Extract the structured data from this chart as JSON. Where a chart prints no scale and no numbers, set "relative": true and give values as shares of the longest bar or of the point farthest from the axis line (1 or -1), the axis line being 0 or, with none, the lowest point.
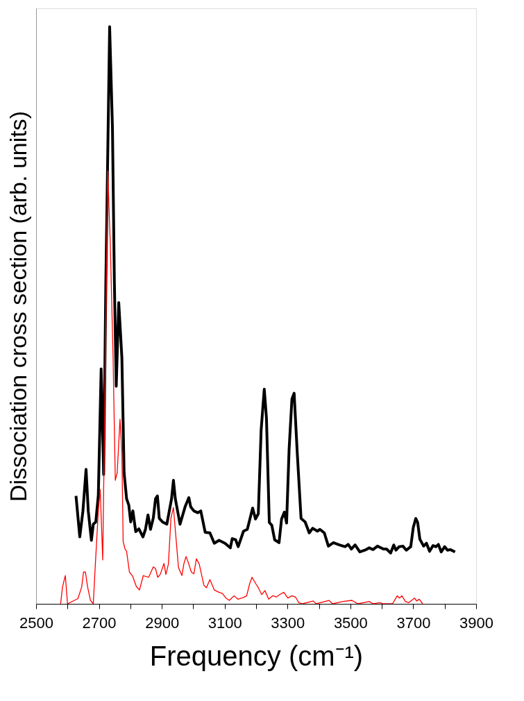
{
  "chart_data": {
    "type": "line",
    "xlabel": "Frequency (cm⁻¹)",
    "ylabel": "Dissociation cross section (arb. units)",
    "relative": true,
    "xlim": [
      2500,
      3900
    ],
    "xticks": [
      2500,
      {
        "value": 2600,
        "label": null
      },
      2700,
      {
        "value": 2800,
        "label": null
      },
      2900,
      {
        "value": 3000,
        "label": null
      },
      3100,
      {
        "value": 3200,
        "label": null
      },
      3300,
      {
        "value": 3400,
        "label": null
      },
      3500,
      {
        "value": 3600,
        "label": null
      },
      3700,
      {
        "value": 3800,
        "label": null
      },
      3900
    ],
    "grid": false,
    "marker": "none",
    "line_style": "solid",
    "series": [
      {
        "color": "#000000",
        "x": [
          2627,
          2639,
          2649,
          2659,
          2666,
          2676,
          2682,
          2690,
          2698,
          2707,
          2715,
          2722,
          2734,
          2743,
          2749,
          2755,
          2763,
          2773,
          2780,
          2788,
          2795,
          2801,
          2808,
          2817,
          2827,
          2840,
          2848,
          2856,
          2864,
          2873,
          2880,
          2886,
          2892,
          2902,
          2916,
          2931,
          2937,
          2943,
          2958,
          2974,
          2986,
          2992,
          3002,
          3014,
          3024,
          3038,
          3053,
          3067,
          3082,
          3101,
          3118,
          3124,
          3135,
          3143,
          3160,
          3172,
          3189,
          3198,
          3207,
          3216,
          3226,
          3233,
          3242,
          3250,
          3259,
          3273,
          3281,
          3290,
          3297,
          3305,
          3314,
          3321,
          3331,
          3343,
          3356,
          3369,
          3380,
          3395,
          3403,
          3417,
          3430,
          3446,
          3465,
          3483,
          3493,
          3503,
          3515,
          3530,
          3546,
          3560,
          3572,
          3586,
          3605,
          3615,
          3628,
          3638,
          3645,
          3655,
          3667,
          3678,
          3692,
          3700,
          3708,
          3714,
          3721,
          3733,
          3742,
          3752,
          3763,
          3772,
          3780,
          3789,
          3800,
          3809,
          3818,
          3833
        ],
        "values": [
          0.187,
          0.116,
          0.161,
          0.233,
          0.161,
          0.11,
          0.138,
          0.142,
          0.188,
          0.407,
          0.224,
          0.56,
          1.0,
          0.824,
          0.56,
          0.377,
          0.522,
          0.426,
          0.227,
          0.182,
          0.171,
          0.142,
          0.161,
          0.125,
          0.13,
          0.116,
          0.129,
          0.154,
          0.129,
          0.149,
          0.182,
          0.187,
          0.148,
          0.142,
          0.138,
          0.182,
          0.214,
          0.182,
          0.138,
          0.168,
          0.184,
          0.168,
          0.161,
          0.158,
          0.161,
          0.124,
          0.123,
          0.105,
          0.11,
          0.105,
          0.097,
          0.113,
          0.111,
          0.099,
          0.126,
          0.129,
          0.166,
          0.147,
          0.156,
          0.301,
          0.372,
          0.321,
          0.141,
          0.136,
          0.111,
          0.106,
          0.147,
          0.159,
          0.14,
          0.268,
          0.355,
          0.365,
          0.261,
          0.148,
          0.142,
          0.123,
          0.131,
          0.126,
          0.129,
          0.123,
          0.1,
          0.106,
          0.102,
          0.099,
          0.103,
          0.095,
          0.102,
          0.09,
          0.093,
          0.097,
          0.094,
          0.1,
          0.095,
          0.095,
          0.088,
          0.102,
          0.093,
          0.099,
          0.1,
          0.093,
          0.099,
          0.132,
          0.148,
          0.141,
          0.112,
          0.1,
          0.105,
          0.091,
          0.101,
          0.099,
          0.103,
          0.09,
          0.099,
          0.093,
          0.094,
          0.09
        ]
      },
      {
        "color": "#ff0000",
        "x": [
          2578,
          2584,
          2593,
          2600,
          2633,
          2645,
          2651,
          2657,
          2664,
          2673,
          2682,
          2688,
          2698,
          2704,
          2712,
          2719,
          2728,
          2736,
          2745,
          2752,
          2758,
          2767,
          2773,
          2777,
          2783,
          2788,
          2797,
          2807,
          2819,
          2829,
          2841,
          2858,
          2873,
          2880,
          2887,
          2895,
          2907,
          2913,
          2921,
          2929,
          2937,
          2953,
          2964,
          2970,
          2977,
          2984,
          2994,
          3002,
          3010,
          3019,
          3034,
          3042,
          3053,
          3067,
          3082,
          3093,
          3104,
          3115,
          3130,
          3142,
          3160,
          3170,
          3179,
          3187,
          3200,
          3207,
          3218,
          3228,
          3240,
          3253,
          3265,
          3275,
          3288,
          3301,
          3314,
          3325,
          3336,
          3347,
          3382,
          3391,
          3432,
          3443,
          3476,
          3505,
          3524,
          3560,
          3572,
          3594,
          3605,
          3634,
          3649,
          3656,
          3664,
          3675,
          3686,
          3704,
          3711,
          3719,
          3730
        ],
        "values": [
          0,
          0.029,
          0.049,
          0,
          0.009,
          0.029,
          0.055,
          0.055,
          0.029,
          0.006,
          0,
          0.063,
          0.161,
          0.198,
          0.076,
          0.36,
          0.75,
          0.626,
          0.426,
          0.214,
          0.227,
          0.32,
          0.261,
          0.108,
          0.095,
          0.091,
          0.055,
          0.048,
          0.03,
          0.024,
          0.049,
          0.046,
          0.064,
          0.061,
          0.046,
          0.051,
          0.07,
          0.051,
          0.069,
          0.148,
          0.167,
          0.063,
          0.049,
          0.069,
          0.082,
          0.072,
          0.055,
          0.052,
          0.078,
          0.069,
          0.032,
          0.028,
          0.042,
          0.024,
          0.02,
          0.018,
          0.01,
          0.006,
          0.014,
          0.008,
          0.011,
          0.014,
          0.034,
          0.046,
          0.034,
          0.028,
          0.016,
          0.023,
          0.008,
          0.014,
          0.012,
          0.016,
          0.02,
          0.01,
          0.014,
          0.012,
          0.002,
          0,
          0.005,
          0,
          0.006,
          0,
          0.004,
          0.006,
          0,
          0.004,
          0,
          0.002,
          0,
          0,
          0.014,
          0.01,
          0.014,
          0.004,
          0.002,
          0.01,
          0.005,
          0.008,
          0
        ]
      }
    ]
  }
}
